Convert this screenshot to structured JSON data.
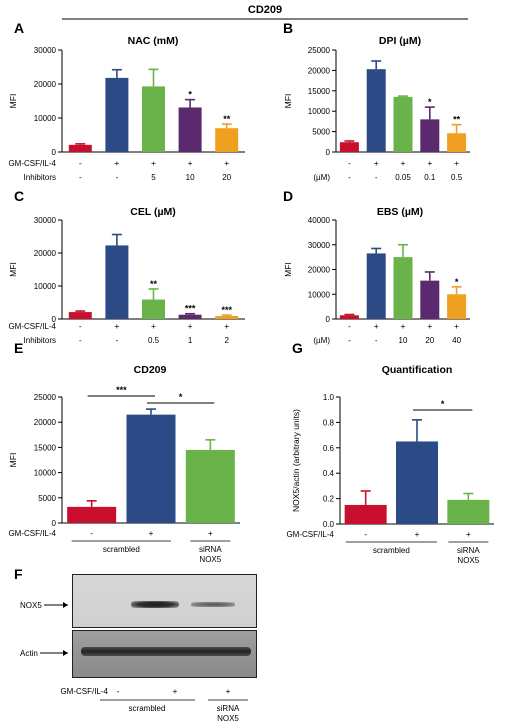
{
  "figure": {
    "header": "CD209",
    "row_labels": [
      "GM-CSF/IL-4",
      "Inhibitors"
    ],
    "colors": [
      "#c8102e",
      "#2b4a86",
      "#6ab34a",
      "#5b2a6e",
      "#f0a020"
    ]
  },
  "chart_data": [
    {
      "id": "A",
      "type": "bar",
      "title": "NAC (mM)",
      "ylabel": "MFI",
      "ylim": [
        0,
        30000
      ],
      "yticks": [
        0,
        10000,
        20000,
        30000
      ],
      "row_labels": [
        "GM-CSF/IL-4",
        "Inhibitors"
      ],
      "gmcsf_row": [
        "-",
        "+",
        "+",
        "+",
        "+"
      ],
      "dose_row": [
        "-",
        "-",
        "5",
        "10",
        "20"
      ],
      "values": [
        2100,
        21800,
        19300,
        13100,
        7000
      ],
      "errors": [
        300,
        2400,
        5000,
        2300,
        1200
      ],
      "significance": [
        "",
        "",
        "",
        "*",
        "**"
      ]
    },
    {
      "id": "B",
      "type": "bar",
      "title": "DPI (µM)",
      "ylabel": "MFI",
      "ylim": [
        0,
        25000
      ],
      "yticks": [
        0,
        5000,
        10000,
        15000,
        20000,
        25000
      ],
      "row_labels": [
        "",
        "(µM)"
      ],
      "gmcsf_row": [
        "-",
        "+",
        "+",
        "+",
        "+"
      ],
      "dose_row": [
        "-",
        "-",
        "0.05",
        "0.1",
        "0.5"
      ],
      "values": [
        2400,
        20300,
        13500,
        8000,
        4600
      ],
      "errors": [
        300,
        2000,
        200,
        3000,
        2100
      ],
      "significance": [
        "",
        "",
        "",
        "*",
        "**"
      ]
    },
    {
      "id": "C",
      "type": "bar",
      "title": "CEL (µM)",
      "ylabel": "MFI",
      "ylim": [
        0,
        30000
      ],
      "yticks": [
        0,
        10000,
        20000,
        30000
      ],
      "row_labels": [
        "GM-CSF/IL-4",
        "Inhibitors"
      ],
      "gmcsf_row": [
        "-",
        "+",
        "+",
        "+",
        "+"
      ],
      "dose_row": [
        "-",
        "-",
        "0.5",
        "1",
        "2"
      ],
      "values": [
        2100,
        22300,
        5900,
        1300,
        900
      ],
      "errors": [
        300,
        3300,
        3200,
        300,
        300
      ],
      "significance": [
        "",
        "",
        "**",
        "***",
        "***"
      ]
    },
    {
      "id": "D",
      "type": "bar",
      "title": "EBS (µM)",
      "ylabel": "MFI",
      "ylim": [
        0,
        40000
      ],
      "yticks": [
        0,
        10000,
        20000,
        30000,
        40000
      ],
      "row_labels": [
        "",
        "(µM)"
      ],
      "gmcsf_row": [
        "-",
        "+",
        "+",
        "+",
        "+"
      ],
      "dose_row": [
        "-",
        "-",
        "10",
        "20",
        "40"
      ],
      "values": [
        1500,
        26500,
        25000,
        15500,
        10000
      ],
      "errors": [
        300,
        2000,
        5000,
        3500,
        3000
      ],
      "significance": [
        "",
        "",
        "",
        "",
        "*"
      ]
    },
    {
      "id": "E",
      "type": "bar",
      "title": "CD209",
      "ylabel": "MFI",
      "ylim": [
        0,
        25000
      ],
      "yticks": [
        0,
        5000,
        10000,
        15000,
        20000,
        25000
      ],
      "row_labels": [
        "GM-CSF/IL-4"
      ],
      "gmcsf_row": [
        "-",
        "+",
        "+"
      ],
      "group_labels": [
        {
          "text": "scrambled"
        },
        {
          "text": "siRNA NOX5"
        }
      ],
      "values": [
        3200,
        21500,
        14500
      ],
      "errors": [
        1200,
        1100,
        2000
      ],
      "brackets": [
        {
          "label": "***"
        },
        {
          "label": "*"
        }
      ]
    },
    {
      "id": "G",
      "type": "bar",
      "title": "Quantification",
      "ylabel": "NOX5/actin (arbitrary units)",
      "ylim": [
        0,
        1.0
      ],
      "yticks": [
        0,
        0.2,
        0.4,
        0.6,
        0.8,
        1.0
      ],
      "ytick_labels": [
        "0.0",
        "0.2",
        "0.4",
        "0.6",
        "0.8",
        "1.0"
      ],
      "row_labels": [
        "GM-CSF/IL-4"
      ],
      "gmcsf_row": [
        "-",
        "+",
        "+"
      ],
      "group_labels": [
        {
          "text": "scrambled"
        },
        {
          "text": "siRNA NOX5"
        }
      ],
      "values": [
        0.15,
        0.65,
        0.19
      ],
      "errors": [
        0.11,
        0.17,
        0.05
      ],
      "brackets": [
        {
          "label": "*"
        }
      ]
    }
  ],
  "blot": {
    "id": "F",
    "bands": [
      "NOX5",
      "Actin"
    ],
    "row_label": "GM-CSF/IL-4",
    "gmcsf_row": [
      "-",
      "+",
      "+"
    ],
    "group_labels": [
      "scrambled",
      "siRNA NOX5"
    ]
  }
}
